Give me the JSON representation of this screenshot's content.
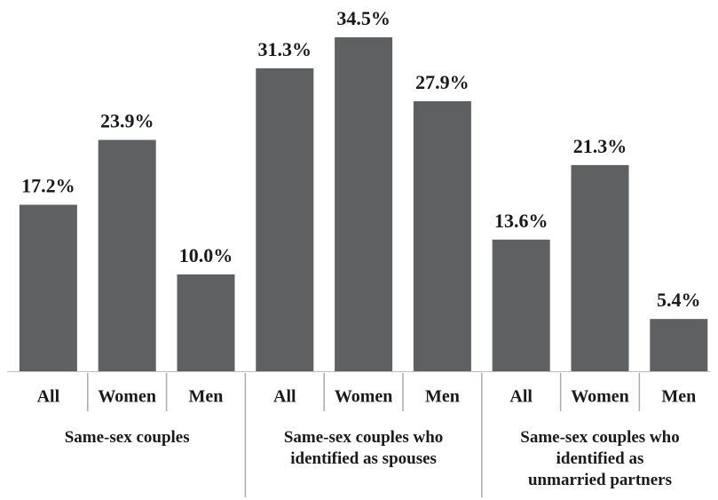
{
  "chart_data": {
    "type": "bar",
    "color": "#5f6062",
    "categories": [
      "All",
      "Women",
      "Men"
    ],
    "series": [
      {
        "name": "Same-sex couples",
        "values": [
          17.2,
          23.9,
          10.0
        ],
        "value_labels": [
          "17.2%",
          "23.9%",
          "10.0%"
        ]
      },
      {
        "name": "Same-sex couples who\nidentified as spouses",
        "values": [
          31.3,
          34.5,
          27.9
        ],
        "value_labels": [
          "31.3%",
          "34.5%",
          "27.9%"
        ]
      },
      {
        "name": "Same-sex couples who\nidentified as\nunmarried partners",
        "values": [
          13.6,
          21.3,
          5.4
        ],
        "value_labels": [
          "13.6%",
          "21.3%",
          "5.4%"
        ]
      }
    ]
  }
}
